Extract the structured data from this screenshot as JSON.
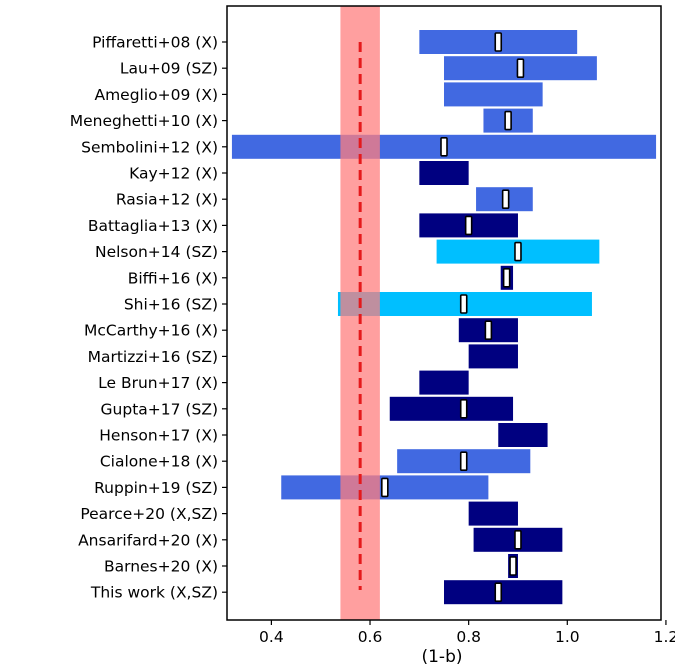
{
  "chart_data": {
    "type": "bar",
    "orientation": "horizontal-range",
    "xlabel": "(1-b)",
    "xlim": [
      0.31,
      1.19
    ],
    "xticks": [
      0.4,
      0.6,
      0.8,
      1.0,
      1.2
    ],
    "xtick_labels": [
      "0.4",
      "0.6",
      "0.8",
      "1.0",
      "1.2"
    ],
    "grid": false,
    "reference": {
      "band": [
        0.54,
        0.62
      ],
      "band_color": "#ff7f7f",
      "line_value": 0.58,
      "line_color": "#e41a1c",
      "line_style": "dashed"
    },
    "colors": {
      "royalblue": "#4169e1",
      "navy": "#000080",
      "deepskyblue": "#00bfff"
    },
    "rows": [
      {
        "label": "Piffaretti+08 (X)",
        "low": 0.7,
        "high": 1.02,
        "marker": 0.86,
        "color": "royalblue"
      },
      {
        "label": "Lau+09 (SZ)",
        "low": 0.75,
        "high": 1.06,
        "marker": 0.905,
        "color": "royalblue"
      },
      {
        "label": "Ameglio+09 (X)",
        "low": 0.75,
        "high": 0.95,
        "marker": null,
        "color": "royalblue"
      },
      {
        "label": "Meneghetti+10 (X)",
        "low": 0.83,
        "high": 0.93,
        "marker": 0.88,
        "color": "royalblue"
      },
      {
        "label": "Sembolini+12 (X)",
        "low": 0.32,
        "high": 1.18,
        "marker": 0.75,
        "color": "royalblue"
      },
      {
        "label": "Kay+12 (X)",
        "low": 0.7,
        "high": 0.8,
        "marker": null,
        "color": "navy"
      },
      {
        "label": "Rasia+12 (X)",
        "low": 0.815,
        "high": 0.93,
        "marker": 0.875,
        "color": "royalblue"
      },
      {
        "label": "Battaglia+13 (X)",
        "low": 0.7,
        "high": 0.9,
        "marker": 0.8,
        "color": "navy"
      },
      {
        "label": "Nelson+14 (SZ)",
        "low": 0.735,
        "high": 1.065,
        "marker": 0.9,
        "color": "deepskyblue"
      },
      {
        "label": "Biffi+16 (X)",
        "low": 0.865,
        "high": 0.89,
        "marker": 0.877,
        "color": "navy"
      },
      {
        "label": "Shi+16 (SZ)",
        "low": 0.535,
        "high": 1.05,
        "marker": 0.79,
        "color": "deepskyblue"
      },
      {
        "label": "McCarthy+16 (X)",
        "low": 0.78,
        "high": 0.9,
        "marker": 0.84,
        "color": "navy"
      },
      {
        "label": "Martizzi+16 (SZ)",
        "low": 0.8,
        "high": 0.9,
        "marker": null,
        "color": "navy"
      },
      {
        "label": "Le Brun+17 (X)",
        "low": 0.7,
        "high": 0.8,
        "marker": null,
        "color": "navy"
      },
      {
        "label": "Gupta+17 (SZ)",
        "low": 0.64,
        "high": 0.89,
        "marker": 0.79,
        "color": "navy"
      },
      {
        "label": "Henson+17 (X)",
        "low": 0.86,
        "high": 0.96,
        "marker": null,
        "color": "navy"
      },
      {
        "label": "Cialone+18 (X)",
        "low": 0.655,
        "high": 0.925,
        "marker": 0.79,
        "color": "royalblue"
      },
      {
        "label": "Ruppin+19 (SZ)",
        "low": 0.42,
        "high": 0.84,
        "marker": 0.63,
        "color": "royalblue"
      },
      {
        "label": "Pearce+20 (X,SZ)",
        "low": 0.8,
        "high": 0.9,
        "marker": null,
        "color": "navy"
      },
      {
        "label": "Ansarifard+20 (X)",
        "low": 0.81,
        "high": 0.99,
        "marker": 0.9,
        "color": "navy"
      },
      {
        "label": "Barnes+20 (X)",
        "low": 0.88,
        "high": 0.9,
        "marker": 0.89,
        "color": "navy"
      },
      {
        "label": "This work (X,SZ)",
        "low": 0.75,
        "high": 0.99,
        "marker": 0.86,
        "color": "navy"
      }
    ]
  }
}
